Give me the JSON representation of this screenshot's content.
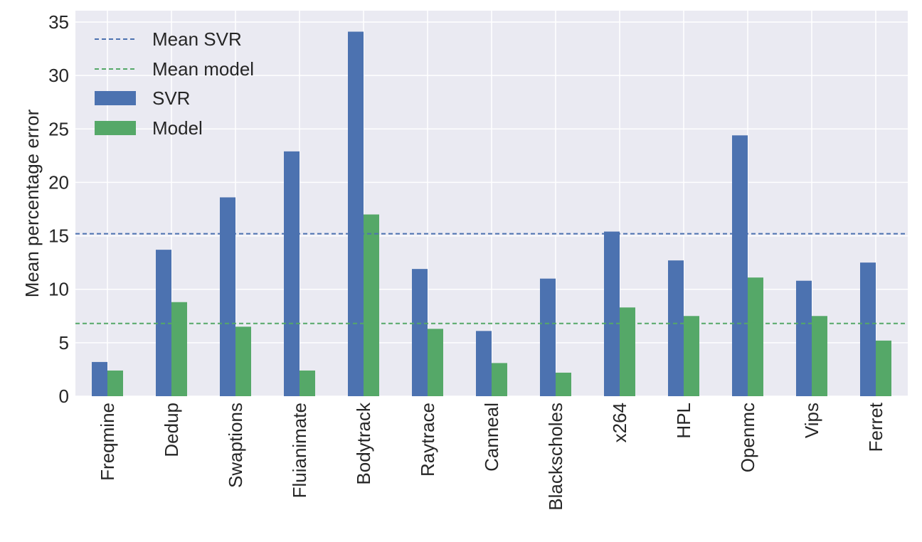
{
  "chart_data": {
    "type": "bar",
    "title": "",
    "xlabel": "",
    "ylabel": "Mean percentage error",
    "ylim": [
      0,
      35
    ],
    "yticks": [
      0,
      5,
      10,
      15,
      20,
      25,
      30,
      35
    ],
    "grid": true,
    "legend_position": "top-left",
    "categories": [
      "Freqmine",
      "Dedup",
      "Swaptions",
      "Fluianimate",
      "Bodytrack",
      "Raytrace",
      "Canneal",
      "Blackscholes",
      "x264",
      "HPL",
      "Openmc",
      "Vips",
      "Ferret"
    ],
    "series": [
      {
        "name": "SVR",
        "color": "#4c72b0",
        "values": [
          3.2,
          13.7,
          18.6,
          22.9,
          34.1,
          11.9,
          6.1,
          11.0,
          15.4,
          12.7,
          24.4,
          10.8,
          12.5
        ]
      },
      {
        "name": "Model",
        "color": "#55a868",
        "values": [
          2.4,
          8.8,
          6.5,
          2.4,
          17.0,
          6.3,
          3.1,
          2.2,
          8.3,
          7.5,
          11.1,
          7.5,
          5.2
        ]
      }
    ],
    "reference_lines": [
      {
        "name": "Mean SVR",
        "value": 15.2,
        "color": "#4c72b0",
        "style": "dashed"
      },
      {
        "name": "Mean model",
        "value": 6.8,
        "color": "#55a868",
        "style": "dashed"
      }
    ],
    "legend": [
      "Mean SVR",
      "Mean model",
      "SVR",
      "Model"
    ]
  }
}
